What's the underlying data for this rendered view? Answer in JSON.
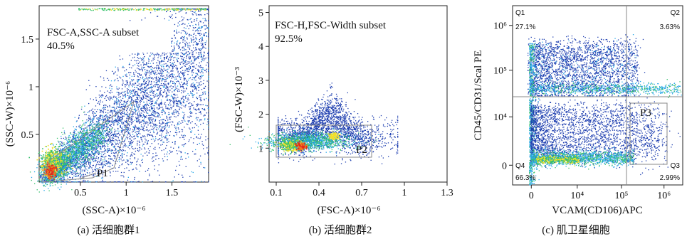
{
  "colors": {
    "density_low": "#1f3fb0",
    "density_mid": "#27a7e8",
    "density_high": "#34c06a",
    "density_peak_1": "#f3e02b",
    "density_peak_2": "#f07b1f",
    "density_peak_3": "#e3261b",
    "gate_line": "#888888"
  },
  "figure_a": {
    "caption": "(a) 活细胞群1",
    "annotation_name": "FSC-A,SSC-A subset",
    "annotation_pct": "40.5%",
    "gate_label": "P1",
    "xlabel": "(SSC-A)×10⁻⁶",
    "ylabel": "(SSC-W)×10⁻⁶"
  },
  "figure_b": {
    "caption": "(b) 活细胞群2",
    "annotation_name": "FSC-H,FSC-Width subset",
    "annotation_pct": "92.5%",
    "gate_label": "P2",
    "xlabel": "(FSC-A)×10⁻⁶",
    "ylabel": "(FSC-W)×10⁻³"
  },
  "figure_c": {
    "caption": "(c) 肌卫星细胞",
    "gate_label": "P3",
    "xlabel": "VCAM(CD106)APC",
    "ylabel": "CD45/CD31/Scal PE",
    "quadrants": [
      {
        "name": "Q1",
        "pct": "27.1%"
      },
      {
        "name": "Q2",
        "pct": "3.63%"
      },
      {
        "name": "Q3",
        "pct": "2.99%"
      },
      {
        "name": "Q4",
        "pct": "66.3%"
      }
    ]
  },
  "chart_data": [
    {
      "type": "scatter",
      "title": "FSC-A,SSC-A subset",
      "xlabel": "(SSC-A)×10⁻⁶",
      "ylabel": "(SSC-W)×10⁻⁶",
      "xlim": [
        0.05,
        1.9
      ],
      "ylim": [
        0,
        1.85
      ],
      "xticks": [
        0.5,
        1,
        1.5
      ],
      "xtick_labels": [
        "0.5",
        "1",
        "1.5"
      ],
      "yticks": [
        0.5,
        1,
        1.5
      ],
      "ytick_labels": [
        "0.5",
        "1",
        "1.5"
      ],
      "gate": {
        "name": "P1",
        "percent": 40.5
      },
      "grid": false
    },
    {
      "type": "scatter",
      "title": "FSC-H,FSC-Width subset",
      "xlabel": "(FSC-A)×10⁻⁶",
      "ylabel": "(FSC-W)×10⁻³",
      "xlim": [
        0.05,
        1.3
      ],
      "ylim": [
        0,
        5.2
      ],
      "xticks": [
        0.1,
        0.4,
        0.7,
        1,
        1.3
      ],
      "xtick_labels": [
        "0.1",
        "0.4",
        "0.7",
        "1",
        "1.3"
      ],
      "yticks": [
        1,
        2,
        3,
        4,
        5
      ],
      "ytick_labels": [
        "1",
        "2",
        "3",
        "4",
        "5"
      ],
      "gate": {
        "name": "P2",
        "percent": 92.5
      },
      "grid": false
    },
    {
      "type": "scatter",
      "title": "",
      "xlabel": "VCAM(CD106)APC",
      "ylabel": "CD45/CD31/Scal PE",
      "scale": "biexponential",
      "xticks": [
        0,
        4,
        5,
        6
      ],
      "xtick_labels": [
        "0",
        "10⁴",
        "10⁵",
        "10⁶"
      ],
      "yticks": [
        0,
        4,
        5,
        6
      ],
      "ytick_labels": [
        "0",
        "10⁴",
        "10⁵",
        "10⁶"
      ],
      "quadrants": [
        {
          "name": "Q1",
          "percent": 27.1
        },
        {
          "name": "Q2",
          "percent": 3.63
        },
        {
          "name": "Q3",
          "percent": 2.99
        },
        {
          "name": "Q4",
          "percent": 66.3
        }
      ],
      "gate": {
        "name": "P3"
      },
      "grid": false
    }
  ]
}
